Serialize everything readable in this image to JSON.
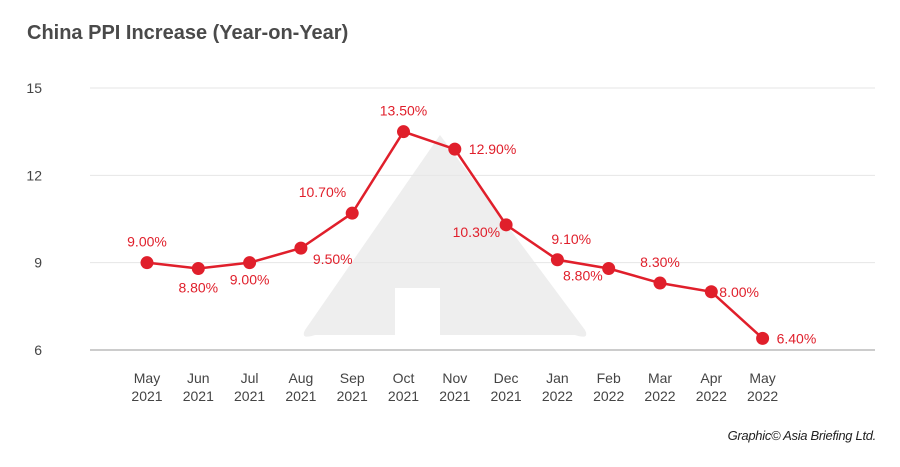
{
  "chart_data": {
    "type": "line",
    "title": "China PPI Increase (Year-on-Year)",
    "xlabel": "",
    "ylabel": "",
    "ylim": [
      6,
      15
    ],
    "yticks": [
      6,
      9,
      12,
      15
    ],
    "grid": true,
    "categories": [
      [
        "May",
        "2021"
      ],
      [
        "Jun",
        "2021"
      ],
      [
        "Jul",
        "2021"
      ],
      [
        "Aug",
        "2021"
      ],
      [
        "Sep",
        "2021"
      ],
      [
        "Oct",
        "2021"
      ],
      [
        "Nov",
        "2021"
      ],
      [
        "Dec",
        "2021"
      ],
      [
        "Jan",
        "2022"
      ],
      [
        "Feb",
        "2022"
      ],
      [
        "Mar",
        "2022"
      ],
      [
        "Apr",
        "2022"
      ],
      [
        "May",
        "2022"
      ]
    ],
    "series": [
      {
        "name": "PPI YoY",
        "values": [
          9.0,
          8.8,
          9.0,
          9.5,
          10.7,
          13.5,
          12.9,
          10.3,
          9.1,
          8.8,
          8.3,
          8.0,
          6.4
        ],
        "labels": [
          "9.00%",
          "8.80%",
          "9.00%",
          "9.50%",
          "10.70%",
          "13.50%",
          "12.90%",
          "10.30%",
          "9.10%",
          "8.80%",
          "8.30%",
          "8.00%",
          "6.40%"
        ],
        "color": "#e01f2b"
      }
    ],
    "credit": "Graphic© Asia Briefing Ltd."
  }
}
